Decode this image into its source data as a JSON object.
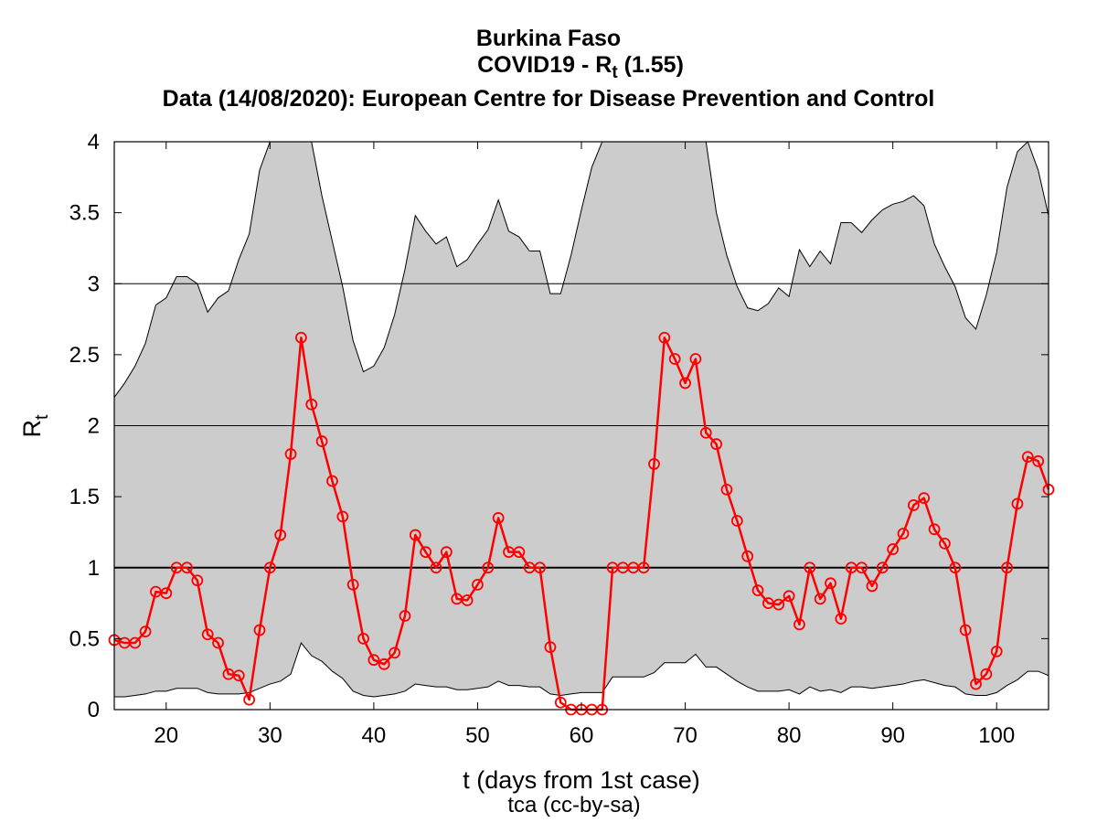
{
  "chart_data": {
    "type": "line",
    "title": "Burkina Faso",
    "subtitle_prefix": "COVID19 - R",
    "subtitle_subscript": "t",
    "subtitle_suffix": " (1.55)",
    "source_line": "Data (14/08/2020): European Centre for Disease Prevention and Control",
    "xlabel": "t (days from 1st case)",
    "ylabel_main": "R",
    "ylabel_sub": "t",
    "credit": "tca (cc-by-sa)",
    "xlim": [
      15,
      105
    ],
    "ylim": [
      0,
      4
    ],
    "x_ticks": [
      20,
      30,
      40,
      50,
      60,
      70,
      80,
      90,
      100
    ],
    "y_ticks": [
      0,
      0.5,
      1,
      1.5,
      2,
      2.5,
      3,
      3.5,
      4
    ],
    "y_tick_labels": [
      "0",
      "0.5",
      "1",
      "1.5",
      "2",
      "2.5",
      "3",
      "3.5",
      "4"
    ],
    "reference_lines": [
      1,
      2,
      3
    ],
    "colors": {
      "series": "#ff0000",
      "band": "#cccccc",
      "band_edge": "#000000"
    },
    "x": [
      15,
      16,
      17,
      18,
      19,
      20,
      21,
      22,
      23,
      24,
      25,
      26,
      27,
      28,
      29,
      30,
      31,
      32,
      33,
      34,
      35,
      36,
      37,
      38,
      39,
      40,
      41,
      42,
      43,
      44,
      45,
      46,
      47,
      48,
      49,
      50,
      51,
      52,
      53,
      54,
      55,
      56,
      57,
      58,
      59,
      60,
      61,
      62,
      63,
      64,
      65,
      66,
      67,
      68,
      69,
      70,
      71,
      72,
      73,
      74,
      75,
      76,
      77,
      78,
      79,
      80,
      81,
      82,
      83,
      84,
      85,
      86,
      87,
      88,
      89,
      90,
      91,
      92,
      93,
      94,
      95,
      96,
      97,
      98,
      99,
      100,
      101,
      102,
      103,
      104,
      105
    ],
    "series": [
      {
        "values": [
          0.49,
          0.47,
          0.47,
          0.55,
          0.83,
          0.82,
          1.0,
          1.0,
          0.91,
          0.53,
          0.47,
          0.25,
          0.24,
          0.07,
          0.56,
          1.0,
          1.23,
          1.8,
          2.62,
          2.15,
          1.89,
          1.61,
          1.36,
          0.88,
          0.5,
          0.35,
          0.32,
          0.4,
          0.66,
          1.23,
          1.11,
          1.0,
          1.11,
          0.78,
          0.77,
          0.88,
          1.0,
          1.35,
          1.11,
          1.11,
          1.0,
          1.0,
          0.44,
          0.05,
          0.0,
          0.0,
          0.0,
          0.0,
          1.0,
          1.0,
          1.0,
          1.0,
          1.73,
          2.62,
          2.47,
          2.3,
          2.47,
          1.95,
          1.87,
          1.55,
          1.33,
          1.08,
          0.84,
          0.75,
          0.74,
          0.8,
          0.6,
          1.0,
          0.78,
          0.89,
          0.64,
          1.0,
          1.0,
          0.87,
          1.0,
          1.13,
          1.24,
          1.44,
          1.49,
          1.27,
          1.17,
          1.0,
          0.56,
          0.18,
          0.25,
          0.41,
          1.0,
          1.45,
          1.78,
          1.75,
          1.55
        ]
      }
    ],
    "band_upper": [
      2.2,
      2.3,
      2.42,
      2.58,
      2.85,
      2.9,
      3.05,
      3.05,
      3.0,
      2.8,
      2.9,
      2.95,
      3.17,
      3.35,
      3.8,
      4.3,
      4.5,
      4.5,
      4.5,
      4.0,
      3.62,
      3.3,
      2.98,
      2.6,
      2.38,
      2.42,
      2.55,
      2.78,
      3.1,
      3.48,
      3.37,
      3.28,
      3.33,
      3.12,
      3.17,
      3.28,
      3.38,
      3.59,
      3.37,
      3.33,
      3.23,
      3.23,
      2.93,
      2.93,
      3.2,
      3.52,
      3.82,
      4.1,
      4.5,
      4.5,
      4.5,
      4.5,
      4.5,
      4.5,
      4.5,
      4.5,
      4.4,
      4.0,
      3.5,
      3.2,
      2.98,
      2.83,
      2.81,
      2.86,
      2.97,
      2.91,
      3.24,
      3.12,
      3.23,
      3.14,
      3.43,
      3.43,
      3.36,
      3.45,
      3.52,
      3.56,
      3.58,
      3.62,
      3.55,
      3.28,
      3.12,
      2.98,
      2.76,
      2.68,
      2.92,
      3.22,
      3.68,
      3.93,
      4.01,
      3.8,
      3.48
    ],
    "band_lower": [
      0.09,
      0.09,
      0.1,
      0.11,
      0.13,
      0.13,
      0.15,
      0.15,
      0.15,
      0.12,
      0.11,
      0.11,
      0.11,
      0.12,
      0.15,
      0.18,
      0.2,
      0.25,
      0.47,
      0.38,
      0.34,
      0.27,
      0.22,
      0.13,
      0.1,
      0.09,
      0.1,
      0.11,
      0.13,
      0.18,
      0.17,
      0.16,
      0.16,
      0.14,
      0.14,
      0.15,
      0.16,
      0.2,
      0.17,
      0.17,
      0.16,
      0.16,
      0.11,
      0.1,
      0.11,
      0.12,
      0.12,
      0.12,
      0.23,
      0.23,
      0.23,
      0.23,
      0.26,
      0.33,
      0.33,
      0.33,
      0.39,
      0.3,
      0.3,
      0.25,
      0.2,
      0.16,
      0.13,
      0.13,
      0.13,
      0.14,
      0.11,
      0.16,
      0.13,
      0.14,
      0.12,
      0.16,
      0.16,
      0.15,
      0.16,
      0.17,
      0.18,
      0.2,
      0.21,
      0.19,
      0.17,
      0.16,
      0.11,
      0.1,
      0.1,
      0.12,
      0.17,
      0.21,
      0.27,
      0.27,
      0.24
    ]
  }
}
